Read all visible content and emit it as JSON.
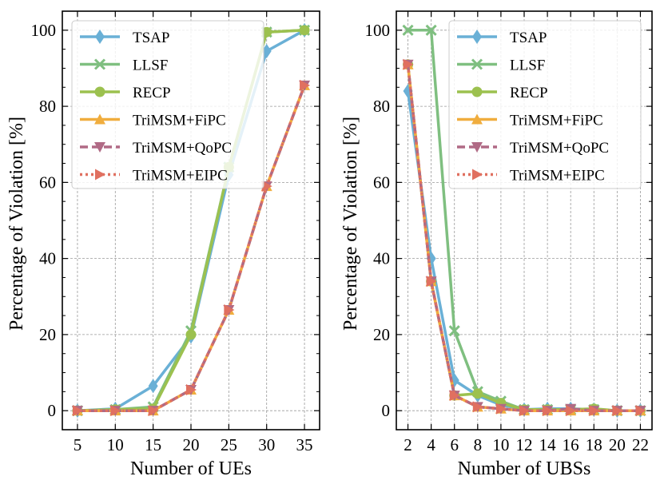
{
  "series_styles": [
    {
      "name": "TSAP",
      "color": "#6ab0d6",
      "dash": "",
      "marker": "diamond"
    },
    {
      "name": "LLSF",
      "color": "#7fbf80",
      "dash": "",
      "marker": "x"
    },
    {
      "name": "RECP",
      "color": "#9cc14f",
      "dash": "",
      "marker": "circle"
    },
    {
      "name": "TriMSM+FiPC",
      "color": "#f0ad3e",
      "dash": "",
      "marker": "triangle-up"
    },
    {
      "name": "TriMSM+QoPC",
      "color": "#b06a85",
      "dash": "10,5",
      "marker": "triangle-down"
    },
    {
      "name": "TriMSM+EIPC",
      "color": "#e07060",
      "dash": "3,4",
      "marker": "triangle-right"
    }
  ],
  "chart_data": [
    {
      "type": "line",
      "title": "",
      "xlabel": "Number of UEs",
      "ylabel": "Percentage of Violation [%]",
      "x": [
        5,
        10,
        15,
        20,
        25,
        30,
        35
      ],
      "xticks": [
        "5",
        "10",
        "15",
        "20",
        "25",
        "30",
        "35"
      ],
      "yticks": [
        "0",
        "20",
        "40",
        "60",
        "80",
        "100"
      ],
      "xlim": [
        3,
        37
      ],
      "ylim": [
        -5,
        105
      ],
      "grid": true,
      "legend_position": "upper-left",
      "series": [
        {
          "name": "TSAP",
          "values": [
            0,
            0.5,
            6.5,
            19.5,
            62,
            94.5,
            100
          ]
        },
        {
          "name": "LLSF",
          "values": [
            0,
            0.3,
            1,
            21,
            64,
            99.5,
            100
          ]
        },
        {
          "name": "RECP",
          "values": [
            0,
            0.3,
            0.5,
            20,
            64,
            99.5,
            100
          ]
        },
        {
          "name": "TriMSM+FiPC",
          "values": [
            0,
            0,
            0,
            5.5,
            26.5,
            59,
            85.5
          ]
        },
        {
          "name": "TriMSM+QoPC",
          "values": [
            0,
            0,
            0,
            5.5,
            26.5,
            59,
            85.5
          ]
        },
        {
          "name": "TriMSM+EIPC",
          "values": [
            0,
            0,
            0,
            5.5,
            26.5,
            59,
            85.5
          ]
        }
      ]
    },
    {
      "type": "line",
      "title": "",
      "xlabel": "Number of UBSs",
      "ylabel": "Percentage of Violation [%]",
      "x": [
        2,
        4,
        6,
        8,
        10,
        12,
        14,
        16,
        18,
        20,
        22
      ],
      "xticks": [
        "2",
        "4",
        "6",
        "8",
        "10",
        "12",
        "14",
        "16",
        "18",
        "20",
        "22"
      ],
      "yticks": [
        "0",
        "20",
        "40",
        "60",
        "80",
        "100"
      ],
      "xlim": [
        1,
        23
      ],
      "ylim": [
        -5,
        105
      ],
      "grid": true,
      "legend_position": "upper-right",
      "series": [
        {
          "name": "TSAP",
          "values": [
            84,
            40,
            8,
            4,
            1.5,
            0.3,
            0.5,
            0.5,
            0.3,
            0,
            0
          ]
        },
        {
          "name": "LLSF",
          "values": [
            100,
            100,
            21,
            5,
            2.5,
            0.3,
            0.3,
            0.3,
            0.3,
            0,
            0
          ]
        },
        {
          "name": "RECP",
          "values": [
            91,
            34,
            4,
            4.5,
            2,
            0.3,
            0.3,
            0.3,
            0.5,
            0,
            0
          ]
        },
        {
          "name": "TriMSM+FiPC",
          "values": [
            91,
            34,
            4,
            1,
            0.5,
            0,
            0,
            0,
            0,
            0,
            0
          ]
        },
        {
          "name": "TriMSM+QoPC",
          "values": [
            91,
            34,
            4,
            1,
            0.5,
            0,
            0,
            0.5,
            0,
            0,
            0
          ]
        },
        {
          "name": "TriMSM+EIPC",
          "values": [
            91,
            34,
            4,
            1,
            0.5,
            0,
            0,
            0,
            0,
            0,
            0
          ]
        }
      ]
    }
  ]
}
